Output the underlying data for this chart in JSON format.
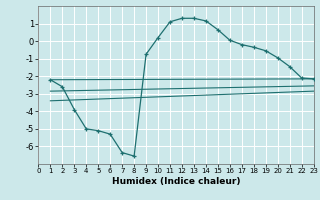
{
  "xlabel": "Humidex (Indice chaleur)",
  "bg_color": "#cce8ea",
  "grid_color": "#ffffff",
  "line_color": "#1e7070",
  "line1_x": [
    1,
    2,
    3,
    4,
    5,
    6,
    7,
    8,
    9,
    10,
    11,
    12,
    13,
    14,
    15,
    16,
    17,
    18,
    19,
    20,
    21,
    22,
    23
  ],
  "line1_y": [
    -2.2,
    -2.6,
    -3.9,
    -5.0,
    -5.1,
    -5.3,
    -6.35,
    -6.55,
    -0.75,
    0.2,
    1.1,
    1.3,
    1.3,
    1.15,
    0.65,
    0.05,
    -0.2,
    -0.35,
    -0.55,
    -0.95,
    -1.45,
    -2.1,
    -2.15
  ],
  "line2_x": [
    1,
    23
  ],
  "line2_y": [
    -2.2,
    -2.15
  ],
  "line3_x": [
    1,
    23
  ],
  "line3_y": [
    -2.85,
    -2.55
  ],
  "line4_x": [
    1,
    23
  ],
  "line4_y": [
    -3.4,
    -2.85
  ],
  "xlim": [
    0,
    23
  ],
  "ylim": [
    -7,
    2
  ],
  "yticks": [
    -6,
    -5,
    -4,
    -3,
    -2,
    -1,
    0,
    1
  ],
  "xticks": [
    0,
    1,
    2,
    3,
    4,
    5,
    6,
    7,
    8,
    9,
    10,
    11,
    12,
    13,
    14,
    15,
    16,
    17,
    18,
    19,
    20,
    21,
    22,
    23
  ]
}
